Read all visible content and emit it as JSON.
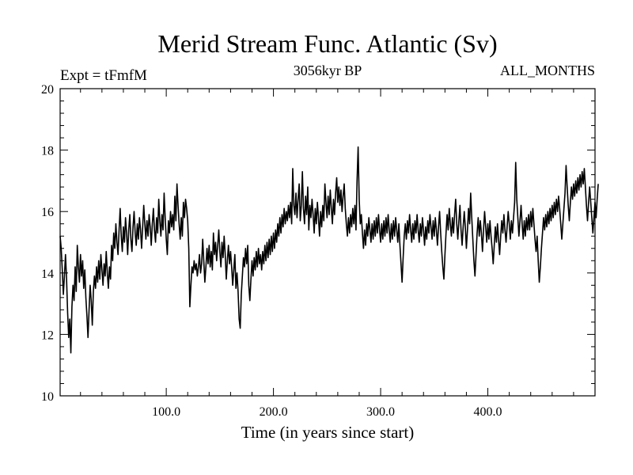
{
  "chart_data": {
    "type": "line",
    "title": "Merid Stream Func. Atlantic (Sv)",
    "subtitle_left": "Expt = tFmfM",
    "subtitle_center": "3056kyr BP",
    "subtitle_right": "ALL_MONTHS",
    "xlabel": "Time (in years since start)",
    "ylabel": "",
    "xlim": [
      1,
      500
    ],
    "ylim": [
      10,
      20
    ],
    "x_ticks": [
      100,
      200,
      300,
      400
    ],
    "x_tick_labels": [
      "100.0",
      "200.0",
      "300.0",
      "400.0"
    ],
    "y_ticks": [
      10,
      12,
      14,
      16,
      18,
      20
    ],
    "y_tick_labels": [
      "10",
      "12",
      "14",
      "16",
      "18",
      "20"
    ],
    "series": [
      {
        "name": "Merid Stream Func. Atlantic",
        "x_start": 1,
        "x_step": 1,
        "values": [
          15.2,
          14.8,
          14.1,
          13.3,
          13.9,
          14.6,
          13.8,
          12.7,
          11.9,
          12.5,
          11.4,
          12.9,
          13.6,
          13.1,
          14.2,
          13.4,
          14.9,
          14.2,
          13.7,
          14.6,
          13.9,
          14.4,
          13.5,
          14.1,
          13.2,
          12.6,
          11.9,
          12.8,
          13.6,
          13.1,
          12.3,
          13.4,
          13.9,
          13.5,
          14.2,
          13.7,
          14.4,
          13.8,
          14.6,
          14.1,
          13.6,
          14.3,
          13.9,
          14.7,
          14.0,
          13.5,
          14.2,
          13.8,
          14.9,
          14.4,
          15.3,
          14.8,
          15.6,
          15.0,
          14.6,
          15.4,
          16.1,
          15.2,
          14.7,
          15.5,
          15.0,
          15.8,
          15.3,
          14.6,
          15.4,
          15.9,
          15.1,
          14.7,
          15.5,
          16.0,
          15.3,
          14.9,
          15.6,
          15.1,
          15.8,
          15.4,
          14.8,
          15.5,
          16.2,
          15.6,
          15.1,
          15.7,
          15.2,
          15.9,
          15.5,
          14.9,
          15.6,
          16.1,
          15.4,
          15.0,
          15.8,
          15.3,
          16.4,
          15.7,
          15.2,
          15.9,
          15.4,
          16.6,
          15.8,
          15.1,
          14.6,
          15.7,
          15.3,
          16.0,
          15.5,
          15.9,
          15.4,
          16.5,
          15.7,
          16.9,
          16.2,
          15.6,
          15.1,
          15.8,
          15.2,
          16.3,
          15.8,
          16.4,
          16.1,
          15.7,
          14.8,
          12.9,
          13.6,
          14.2,
          14.0,
          14.4,
          14.1,
          14.3,
          13.9,
          14.2,
          14.6,
          14.0,
          14.3,
          15.1,
          14.4,
          13.7,
          14.2,
          14.8,
          14.3,
          14.9,
          14.2,
          14.7,
          14.1,
          15.3,
          14.6,
          15.0,
          14.4,
          14.9,
          15.4,
          14.7,
          14.2,
          15.0,
          14.5,
          15.2,
          14.6,
          13.8,
          14.4,
          14.9,
          14.3,
          14.7,
          14.2,
          13.6,
          14.1,
          14.6,
          13.5,
          14.0,
          13.4,
          12.5,
          12.2,
          13.3,
          13.9,
          14.5,
          14.2,
          14.8,
          14.3,
          14.9,
          13.6,
          13.1,
          13.8,
          14.4,
          13.9,
          14.5,
          14.1,
          14.7,
          14.2,
          14.8,
          14.3,
          14.6,
          14.1,
          14.7,
          14.3,
          14.9,
          14.4,
          15.0,
          14.5,
          15.1,
          14.6,
          15.2,
          14.7,
          15.3,
          14.8,
          15.4,
          15.0,
          15.6,
          15.2,
          15.8,
          15.3,
          15.9,
          15.5,
          16.1,
          15.6,
          16.0,
          15.7,
          16.2,
          15.8,
          16.3,
          15.6,
          17.4,
          16.2,
          15.9,
          16.6,
          15.8,
          16.4,
          16.9,
          15.7,
          16.2,
          17.3,
          16.1,
          15.6,
          16.5,
          15.9,
          16.8,
          15.4,
          16.2,
          15.8,
          16.4,
          15.9,
          15.3,
          16.1,
          15.6,
          16.3,
          15.8,
          15.2,
          16.0,
          15.5,
          16.2,
          15.7,
          16.9,
          16.3,
          15.8,
          16.5,
          15.9,
          16.7,
          16.1,
          15.6,
          16.4,
          15.9,
          16.6,
          17.1,
          16.3,
          16.8,
          16.2,
          16.7,
          16.0,
          16.5,
          16.9,
          16.1,
          15.6,
          15.2,
          15.8,
          15.3,
          15.9,
          15.5,
          16.1,
          15.6,
          16.2,
          15.4,
          17.0,
          18.1,
          16.4,
          15.6,
          15.9,
          15.3,
          14.8,
          15.4,
          14.9,
          15.6,
          15.2,
          15.8,
          15.4,
          15.0,
          15.6,
          15.1,
          15.7,
          15.2,
          15.8,
          15.3,
          15.9,
          15.4,
          15.0,
          15.6,
          15.1,
          15.7,
          15.2,
          15.8,
          15.3,
          15.9,
          15.4,
          15.0,
          15.6,
          15.1,
          15.7,
          15.2,
          15.8,
          15.4,
          15.0,
          15.6,
          14.9,
          14.3,
          13.7,
          14.5,
          15.2,
          15.6,
          15.1,
          15.7,
          15.3,
          15.9,
          15.4,
          15.0,
          15.6,
          15.1,
          15.7,
          15.3,
          15.9,
          15.4,
          15.0,
          15.6,
          15.2,
          15.8,
          15.4,
          14.9,
          15.5,
          15.1,
          15.7,
          15.3,
          15.9,
          15.5,
          15.1,
          15.7,
          15.2,
          15.8,
          15.4,
          14.9,
          15.5,
          16.0,
          15.3,
          14.7,
          14.2,
          13.8,
          14.6,
          15.3,
          15.9,
          15.4,
          16.1,
          15.6,
          15.2,
          15.8,
          15.3,
          15.9,
          16.4,
          15.6,
          15.1,
          15.7,
          16.2,
          15.4,
          14.9,
          15.5,
          16.0,
          15.5,
          14.8,
          15.4,
          16.1,
          15.6,
          16.6,
          15.8,
          15.1,
          14.4,
          13.9,
          14.6,
          15.3,
          15.8,
          15.2,
          15.7,
          15.3,
          14.7,
          15.4,
          16.0,
          15.5,
          15.0,
          15.6,
          15.1,
          15.7,
          15.2,
          14.8,
          14.3,
          14.9,
          15.5,
          15.0,
          15.6,
          15.1,
          14.6,
          15.2,
          15.7,
          15.3,
          15.9,
          15.4,
          15.0,
          15.5,
          16.0,
          15.6,
          15.1,
          15.7,
          15.3,
          15.8,
          16.3,
          17.6,
          16.4,
          15.8,
          15.2,
          15.7,
          16.2,
          15.6,
          15.1,
          15.7,
          15.2,
          15.8,
          15.4,
          15.9,
          15.4,
          16.0,
          15.5,
          16.1,
          15.6,
          15.1,
          14.7,
          15.2,
          14.4,
          13.7,
          14.2,
          14.8,
          15.3,
          15.8,
          15.4,
          15.9,
          15.5,
          16.0,
          15.6,
          16.1,
          15.7,
          16.2,
          15.8,
          16.3,
          15.9,
          16.4,
          16.0,
          16.5,
          16.1,
          15.6,
          15.1,
          15.6,
          16.1,
          16.6,
          17.5,
          16.8,
          16.2,
          15.7,
          16.3,
          16.8,
          16.4,
          16.9,
          16.5,
          17.0,
          16.6,
          17.1,
          16.7,
          17.2,
          16.8,
          17.3,
          16.9,
          17.4,
          16.8,
          16.2,
          15.7,
          16.3,
          16.8,
          16.3,
          15.8,
          15.3,
          15.8,
          16.3,
          15.8,
          16.4,
          16.9
        ]
      }
    ]
  }
}
